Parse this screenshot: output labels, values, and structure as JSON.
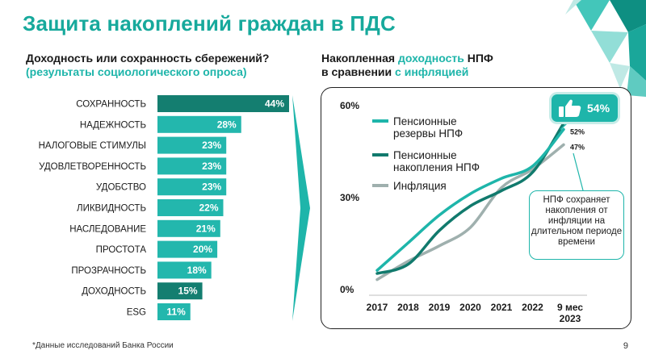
{
  "title": "Защита накоплений граждан в ПДС",
  "left_header": {
    "line1": "Доходность или сохранность сбережений?",
    "line2": "(результаты социологического опроса)"
  },
  "right_header": {
    "part1": "Накопленная ",
    "part2": "доходность",
    "part3": " НПФ",
    "part4": "в сравнении ",
    "part5": "с инфляцией"
  },
  "colors": {
    "accent": "#1eb5aa",
    "dark_teal": "#117a6d",
    "inflation_gray": "#9fb0ae",
    "bar_light": "#23b7ad",
    "bar_dark": "#147e70"
  },
  "badge": {
    "icon": "thumbs-up-icon",
    "value": "54%"
  },
  "callout_text": "НПФ сохраняет накопления от инфляции на длительном периоде времени",
  "footnote": "*Данные исследований Банка России",
  "page_number": "9",
  "chart_data": [
    {
      "type": "bar",
      "orientation": "horizontal",
      "categories": [
        "СОХРАННОСТЬ",
        "НАДЕЖНОСТЬ",
        "НАЛОГОВЫЕ СТИМУЛЫ",
        "УДОВЛЕТВОРЕННОСТЬ",
        "УДОБСТВО",
        "ЛИКВИДНОСТЬ",
        "НАСЛЕДОВАНИЕ",
        "ПРОСТОТА",
        "ПРОЗРАЧНОСТЬ",
        "ДОХОДНОСТЬ",
        "ESG"
      ],
      "values": [
        44,
        28,
        23,
        23,
        23,
        22,
        21,
        20,
        18,
        15,
        11
      ],
      "labels": [
        "44%",
        "28%",
        "23%",
        "23%",
        "23%",
        "22%",
        "21%",
        "20%",
        "18%",
        "15%",
        "11%"
      ],
      "highlighted": [
        "СОХРАННОСТЬ",
        "ДОХОДНОСТЬ"
      ]
    },
    {
      "type": "line",
      "x": [
        "2017",
        "2018",
        "2019",
        "2020",
        "2021",
        "2022",
        "9 мес 2023"
      ],
      "yticks": [
        "0%",
        "30%",
        "60%"
      ],
      "ylim": [
        0,
        60
      ],
      "series": [
        {
          "name": "Пенсионные резервы НПФ",
          "values": [
            6,
            15,
            24,
            31,
            36,
            40,
            52
          ],
          "end_label": "52%",
          "color": "#1eb5aa"
        },
        {
          "name": "Пенсионные накопления НПФ",
          "values": [
            5,
            8,
            19,
            27,
            32,
            38,
            54
          ],
          "end_label": "",
          "color": "#117a6d"
        },
        {
          "name": "Инфляция",
          "values": [
            3,
            9,
            14,
            20,
            33,
            39,
            47
          ],
          "end_label": "47%",
          "color": "#9fb0ae"
        }
      ],
      "legend_position": "top-left"
    }
  ]
}
